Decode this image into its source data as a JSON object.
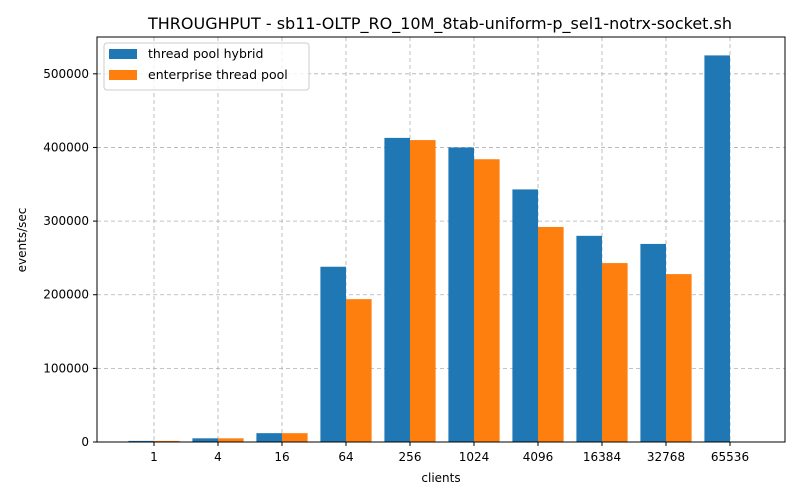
{
  "chart_data": {
    "type": "bar",
    "title": "THROUGHPUT - sb11-OLTP_RO_10M_8tab-uniform-p_sel1-notrx-socket.sh",
    "xlabel": "clients",
    "ylabel": "events/sec",
    "categories": [
      "1",
      "4",
      "16",
      "64",
      "256",
      "1024",
      "4096",
      "16384",
      "32768",
      "65536"
    ],
    "series": [
      {
        "name": "thread pool hybrid",
        "color": "#1f77b4",
        "values": [
          1500,
          5000,
          12000,
          238000,
          413000,
          400000,
          343000,
          280000,
          269000,
          525000
        ]
      },
      {
        "name": "enterprise thread pool",
        "color": "#ff7f0e",
        "values": [
          1500,
          5000,
          12000,
          194000,
          410000,
          384000,
          292000,
          243000,
          228000,
          null
        ]
      }
    ],
    "ylim": [
      0,
      550000
    ],
    "yticks": [
      0,
      100000,
      200000,
      300000,
      400000,
      500000
    ],
    "grid": true,
    "legend_position": "top-left"
  }
}
